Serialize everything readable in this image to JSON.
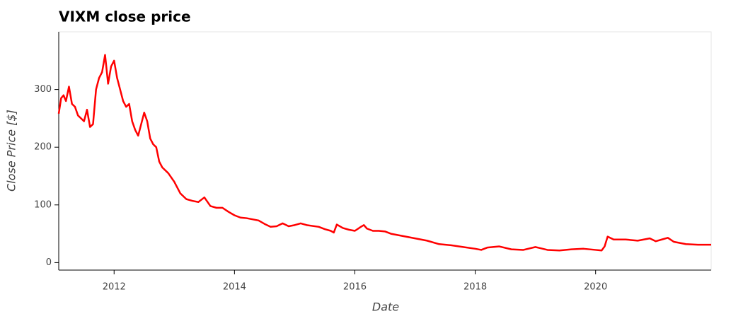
{
  "chart_data": {
    "type": "line",
    "title": "VIXM close price",
    "x_label": "Date",
    "y_label": "Close Price [$]",
    "x": [
      2011.08,
      2011.12,
      2011.16,
      2011.2,
      2011.25,
      2011.3,
      2011.35,
      2011.4,
      2011.45,
      2011.5,
      2011.55,
      2011.6,
      2011.65,
      2011.7,
      2011.75,
      2011.8,
      2011.85,
      2011.9,
      2011.95,
      2012.0,
      2012.05,
      2012.1,
      2012.15,
      2012.2,
      2012.25,
      2012.3,
      2012.35,
      2012.4,
      2012.45,
      2012.5,
      2012.55,
      2012.6,
      2012.65,
      2012.7,
      2012.75,
      2012.8,
      2012.9,
      2013.0,
      2013.1,
      2013.2,
      2013.3,
      2013.4,
      2013.5,
      2013.6,
      2013.7,
      2013.8,
      2013.9,
      2014.0,
      2014.1,
      2014.2,
      2014.4,
      2014.5,
      2014.6,
      2014.7,
      2014.8,
      2014.9,
      2015.0,
      2015.1,
      2015.2,
      2015.4,
      2015.5,
      2015.6,
      2015.65,
      2015.7,
      2015.8,
      2015.9,
      2016.0,
      2016.1,
      2016.15,
      2016.2,
      2016.3,
      2016.4,
      2016.5,
      2016.6,
      2016.8,
      2017.0,
      2017.2,
      2017.4,
      2017.6,
      2017.8,
      2018.0,
      2018.1,
      2018.2,
      2018.4,
      2018.6,
      2018.8,
      2019.0,
      2019.2,
      2019.4,
      2019.6,
      2019.8,
      2020.0,
      2020.1,
      2020.15,
      2020.2,
      2020.3,
      2020.5,
      2020.7,
      2020.9,
      2021.0,
      2021.1,
      2021.2,
      2021.3,
      2021.5,
      2021.7,
      2021.92
    ],
    "series": [
      {
        "name": "VIXM",
        "color": "#ff0000",
        "values": [
          258,
          285,
          290,
          280,
          305,
          275,
          270,
          255,
          250,
          245,
          265,
          235,
          240,
          300,
          320,
          330,
          360,
          310,
          340,
          350,
          320,
          300,
          280,
          270,
          275,
          245,
          230,
          220,
          240,
          260,
          245,
          215,
          205,
          200,
          175,
          165,
          155,
          140,
          120,
          110,
          107,
          105,
          113,
          98,
          95,
          95,
          88,
          82,
          78,
          77,
          73,
          67,
          62,
          63,
          68,
          63,
          65,
          68,
          65,
          62,
          58,
          55,
          52,
          66,
          60,
          57,
          55,
          62,
          65,
          59,
          55,
          55,
          54,
          50,
          46,
          42,
          38,
          32,
          30,
          27,
          24,
          22,
          26,
          28,
          23,
          22,
          27,
          22,
          21,
          23,
          24,
          22,
          21,
          28,
          45,
          40,
          40,
          38,
          42,
          37,
          40,
          43,
          36,
          32,
          31,
          31
        ]
      }
    ],
    "xlim": [
      2011.08,
      2021.92
    ],
    "xticks": [
      2012,
      2014,
      2016,
      2018,
      2020
    ],
    "ylim": [
      -13,
      400
    ],
    "yticks": [
      0,
      100,
      200,
      300
    ]
  }
}
